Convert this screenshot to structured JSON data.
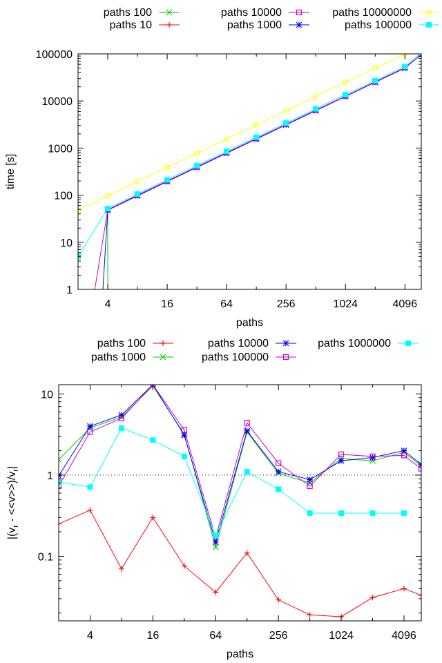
{
  "chart_data": [
    {
      "type": "line",
      "title": "",
      "xlabel": "paths",
      "ylabel": "time [s]",
      "x_scale": "log2",
      "y_scale": "log10",
      "xlim": [
        2,
        6000
      ],
      "ylim": [
        1,
        100000
      ],
      "x_ticks": [
        4,
        16,
        64,
        256,
        1024,
        4096
      ],
      "x_tick_labels": [
        "4",
        "16",
        "64",
        "256",
        "1024",
        "4096"
      ],
      "y_ticks": [
        1,
        10,
        100,
        1000,
        10000,
        100000
      ],
      "y_tick_labels": [
        "1",
        "10",
        "100",
        "1000",
        "10000",
        "100000"
      ],
      "grid": false,
      "legend_position": "top",
      "series": [
        {
          "name": "paths 10",
          "color": "#ff0000",
          "marker": "plus",
          "x": [
            4,
            8,
            16,
            32,
            64,
            128,
            256,
            512,
            1024,
            2048,
            4096,
            6000
          ],
          "y": [
            null,
            null,
            null,
            null,
            null,
            null,
            null,
            null,
            null,
            null,
            null,
            null
          ]
        },
        {
          "name": "paths 100",
          "color": "#00cc00",
          "marker": "cross",
          "x": [
            4,
            4,
            8,
            16,
            32,
            64,
            128,
            256,
            512,
            1024,
            2048,
            4096,
            6000
          ],
          "y": [
            0.5,
            48,
            97,
            195,
            390,
            780,
            1560,
            3120,
            6240,
            12500,
            25000,
            50000,
            97000
          ]
        },
        {
          "name": "paths 1000",
          "color": "#0000ff",
          "marker": "star",
          "x": [
            3.5,
            4,
            8,
            16,
            32,
            64,
            128,
            256,
            512,
            1024,
            2048,
            4096,
            6000
          ],
          "y": [
            0.5,
            48,
            97,
            195,
            390,
            780,
            1560,
            3120,
            6240,
            12500,
            25000,
            50000,
            97000
          ]
        },
        {
          "name": "paths 10000",
          "color": "#cc00cc",
          "marker": "box",
          "x": [
            2.8,
            4,
            8,
            16,
            32,
            64,
            128,
            256,
            512,
            1024,
            2048,
            4096,
            6000
          ],
          "y": [
            0.5,
            49,
            100,
            200,
            400,
            800,
            1600,
            3200,
            6400,
            12700,
            25500,
            51000,
            98000
          ]
        },
        {
          "name": "paths 100000",
          "color": "#00ffff",
          "marker": "filled-box",
          "x": [
            2,
            4,
            8,
            16,
            32,
            64,
            128,
            256,
            512,
            1024,
            2048,
            4096,
            6000
          ],
          "y": [
            5,
            52,
            106,
            212,
            425,
            850,
            1700,
            3400,
            6800,
            13600,
            27000,
            54000,
            105000
          ]
        },
        {
          "name": "paths 10000000",
          "color": "#ffff00",
          "marker": "circle",
          "x": [
            2,
            4,
            8,
            16,
            32,
            64,
            128,
            256,
            512,
            1024,
            2048,
            4096
          ],
          "y": [
            48,
            97,
            195,
            390,
            780,
            1560,
            3120,
            6240,
            12500,
            25000,
            50000,
            100000
          ]
        }
      ]
    },
    {
      "type": "line",
      "title": "",
      "xlabel": "paths",
      "ylabel": "|(v_r - <<v>>)/v_r|",
      "ylabel_parts": {
        "open": "|(v",
        "sub1": "r",
        "mid": " - <<v>>)/v",
        "sub2": "r",
        "close": "|"
      },
      "x_scale": "log2",
      "y_scale": "log10",
      "xlim": [
        2,
        6000
      ],
      "ylim": [
        0.016,
        13
      ],
      "x_ticks": [
        4,
        16,
        64,
        256,
        1024,
        4096
      ],
      "x_tick_labels": [
        "4",
        "16",
        "64",
        "256",
        "1024",
        "4096"
      ],
      "y_ticks": [
        0.1,
        1,
        10
      ],
      "y_tick_labels": [
        "0.1",
        "1",
        "10"
      ],
      "reference_line": 1,
      "grid": false,
      "legend_position": "top",
      "series": [
        {
          "name": "paths 100",
          "color": "#ff0000",
          "marker": "plus",
          "x": [
            2,
            4,
            8,
            16,
            32,
            64,
            128,
            256,
            512,
            1024,
            2048,
            4096,
            6000
          ],
          "y": [
            0.25,
            0.37,
            0.07,
            0.3,
            0.076,
            0.036,
            0.11,
            0.029,
            0.019,
            0.018,
            0.031,
            0.04,
            0.033
          ]
        },
        {
          "name": "paths 1000",
          "color": "#00cc00",
          "marker": "cross",
          "x": [
            2,
            4,
            8,
            16,
            32,
            64,
            128,
            256,
            512,
            1024,
            2048,
            4096,
            6000
          ],
          "y": [
            1.55,
            3.8,
            5.2,
            12.5,
            3.2,
            0.13,
            3.4,
            1.05,
            0.8,
            1.6,
            1.5,
            1.9,
            1.3
          ]
        },
        {
          "name": "paths 10000",
          "color": "#0000ff",
          "marker": "star",
          "x": [
            2,
            4,
            8,
            16,
            32,
            64,
            128,
            256,
            512,
            1024,
            2048,
            4096,
            6000
          ],
          "y": [
            0.98,
            4.0,
            5.5,
            13.0,
            3.1,
            0.15,
            3.5,
            1.1,
            0.88,
            1.5,
            1.65,
            2.0,
            1.35
          ]
        },
        {
          "name": "paths 100000",
          "color": "#cc00cc",
          "marker": "box",
          "x": [
            2,
            4,
            8,
            16,
            32,
            64,
            128,
            256,
            512,
            1024,
            2048,
            4096,
            6000
          ],
          "y": [
            0.73,
            3.4,
            5.0,
            13.0,
            3.6,
            0.17,
            4.4,
            1.4,
            0.73,
            1.8,
            1.7,
            1.75,
            1.2
          ]
        },
        {
          "name": "paths 1000000",
          "color": "#00ffff",
          "marker": "filled-box",
          "x": [
            2,
            4,
            8,
            16,
            32,
            64,
            128,
            256,
            512,
            1024,
            2048,
            4096
          ],
          "y": [
            0.82,
            0.71,
            3.8,
            2.7,
            1.7,
            0.18,
            1.1,
            0.67,
            0.34,
            0.34,
            0.34,
            0.34
          ]
        }
      ]
    }
  ]
}
